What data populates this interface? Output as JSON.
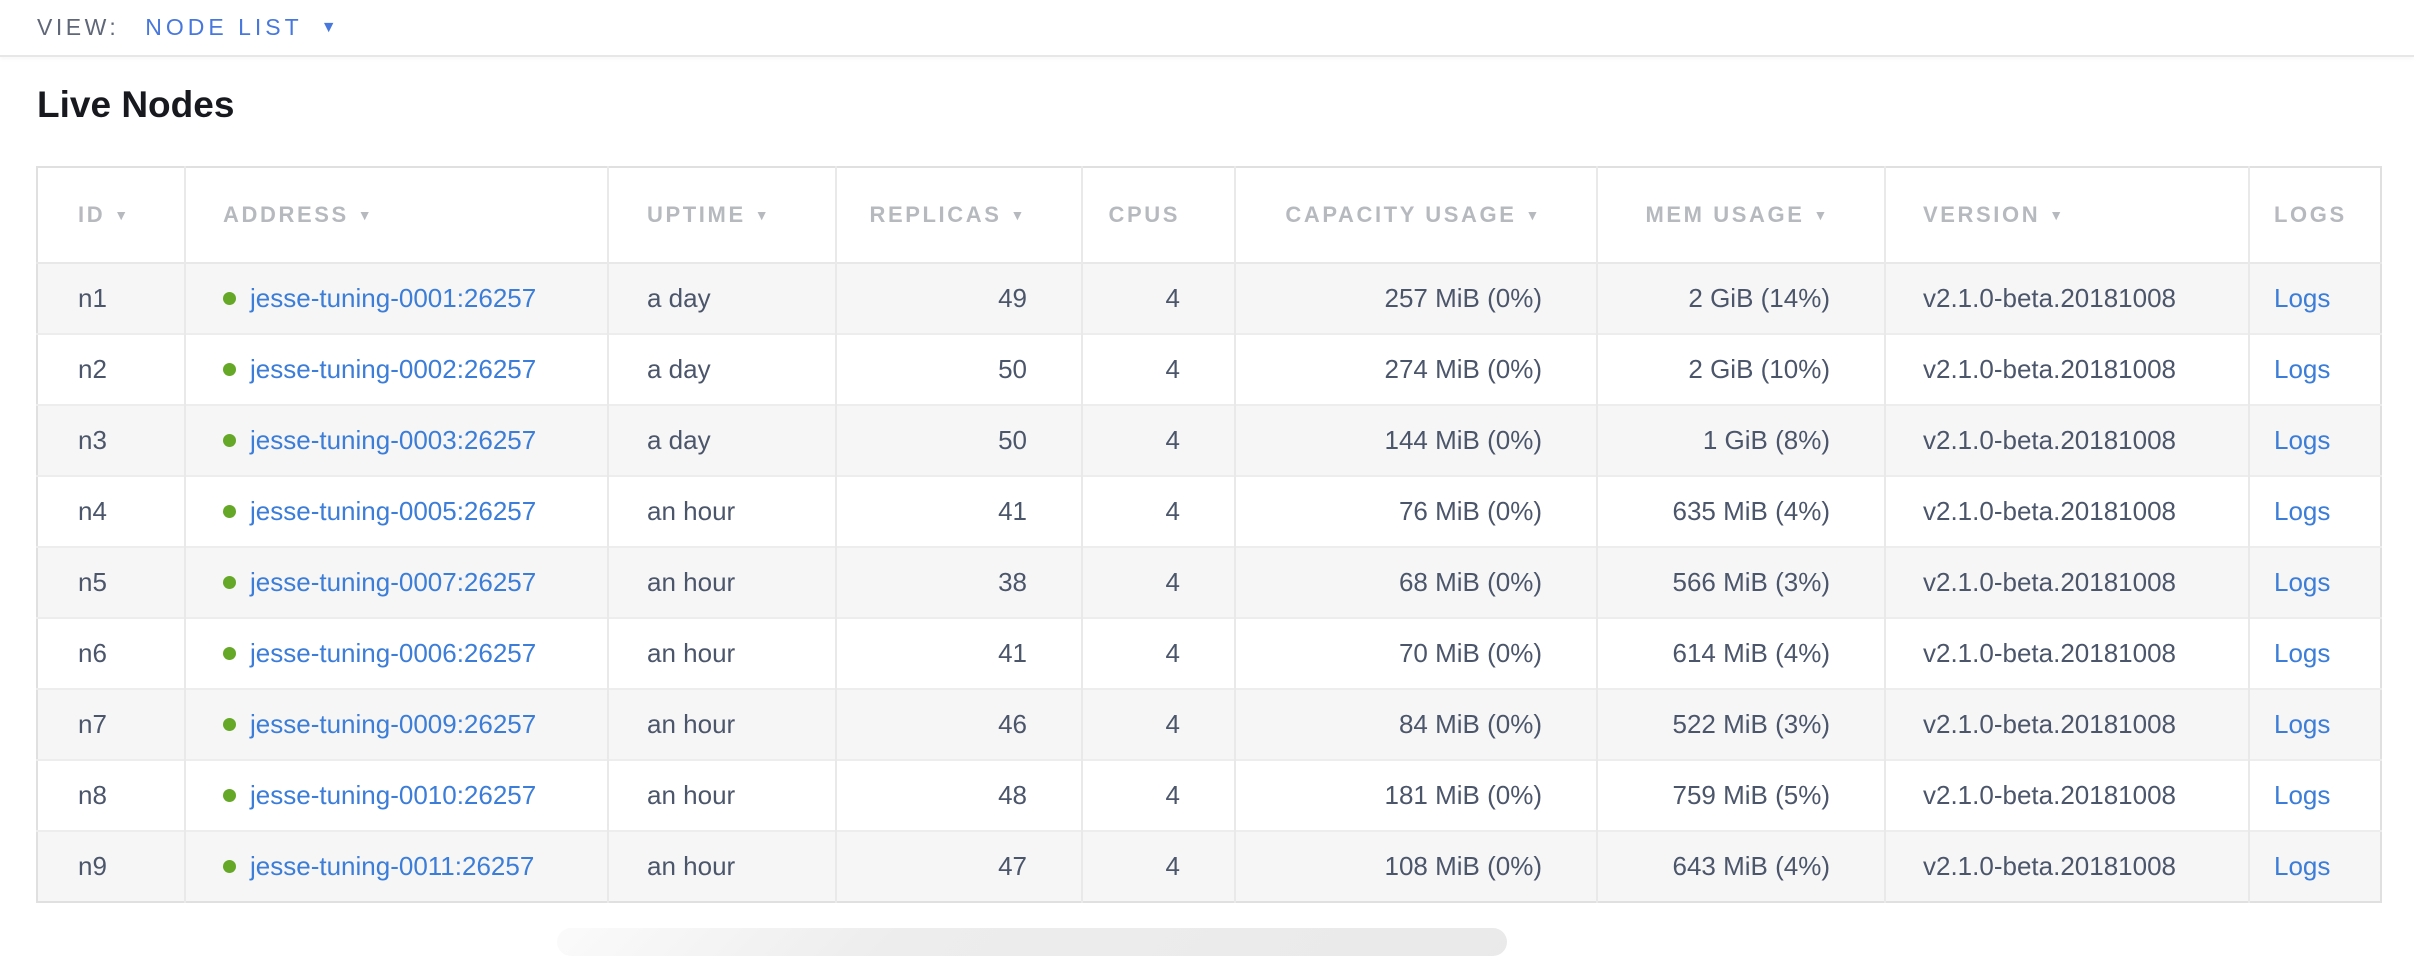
{
  "view_bar": {
    "label": "VIEW:",
    "selected": "NODE LIST"
  },
  "page": {
    "title": "Live Nodes"
  },
  "table": {
    "columns": [
      {
        "key": "id",
        "label": "ID",
        "sortable": true
      },
      {
        "key": "address",
        "label": "ADDRESS",
        "sortable": true
      },
      {
        "key": "uptime",
        "label": "UPTIME",
        "sortable": true
      },
      {
        "key": "replicas",
        "label": "REPLICAS",
        "sortable": true
      },
      {
        "key": "cpus",
        "label": "CPUS",
        "sortable": false
      },
      {
        "key": "capacity",
        "label": "CAPACITY USAGE",
        "sortable": true
      },
      {
        "key": "mem",
        "label": "MEM USAGE",
        "sortable": true
      },
      {
        "key": "version",
        "label": "VERSION",
        "sortable": true
      },
      {
        "key": "logs",
        "label": "LOGS",
        "sortable": false
      }
    ],
    "rows": [
      {
        "id": "n1",
        "status": "live",
        "address": "jesse-tuning-0001:26257",
        "uptime": "a day",
        "replicas": "49",
        "cpus": "4",
        "capacity": "257 MiB (0%)",
        "mem": "2 GiB (14%)",
        "version": "v2.1.0-beta.20181008",
        "logs": "Logs"
      },
      {
        "id": "n2",
        "status": "live",
        "address": "jesse-tuning-0002:26257",
        "uptime": "a day",
        "replicas": "50",
        "cpus": "4",
        "capacity": "274 MiB (0%)",
        "mem": "2 GiB (10%)",
        "version": "v2.1.0-beta.20181008",
        "logs": "Logs"
      },
      {
        "id": "n3",
        "status": "live",
        "address": "jesse-tuning-0003:26257",
        "uptime": "a day",
        "replicas": "50",
        "cpus": "4",
        "capacity": "144 MiB (0%)",
        "mem": "1 GiB (8%)",
        "version": "v2.1.0-beta.20181008",
        "logs": "Logs"
      },
      {
        "id": "n4",
        "status": "live",
        "address": "jesse-tuning-0005:26257",
        "uptime": "an hour",
        "replicas": "41",
        "cpus": "4",
        "capacity": "76 MiB (0%)",
        "mem": "635 MiB (4%)",
        "version": "v2.1.0-beta.20181008",
        "logs": "Logs"
      },
      {
        "id": "n5",
        "status": "live",
        "address": "jesse-tuning-0007:26257",
        "uptime": "an hour",
        "replicas": "38",
        "cpus": "4",
        "capacity": "68 MiB (0%)",
        "mem": "566 MiB (3%)",
        "version": "v2.1.0-beta.20181008",
        "logs": "Logs"
      },
      {
        "id": "n6",
        "status": "live",
        "address": "jesse-tuning-0006:26257",
        "uptime": "an hour",
        "replicas": "41",
        "cpus": "4",
        "capacity": "70 MiB (0%)",
        "mem": "614 MiB (4%)",
        "version": "v2.1.0-beta.20181008",
        "logs": "Logs"
      },
      {
        "id": "n7",
        "status": "live",
        "address": "jesse-tuning-0009:26257",
        "uptime": "an hour",
        "replicas": "46",
        "cpus": "4",
        "capacity": "84 MiB (0%)",
        "mem": "522 MiB (3%)",
        "version": "v2.1.0-beta.20181008",
        "logs": "Logs"
      },
      {
        "id": "n8",
        "status": "live",
        "address": "jesse-tuning-0010:26257",
        "uptime": "an hour",
        "replicas": "48",
        "cpus": "4",
        "capacity": "181 MiB (0%)",
        "mem": "759 MiB (5%)",
        "version": "v2.1.0-beta.20181008",
        "logs": "Logs"
      },
      {
        "id": "n9",
        "status": "live",
        "address": "jesse-tuning-0011:26257",
        "uptime": "an hour",
        "replicas": "47",
        "cpus": "4",
        "capacity": "108 MiB (0%)",
        "mem": "643 MiB (4%)",
        "version": "v2.1.0-beta.20181008",
        "logs": "Logs"
      }
    ]
  },
  "colors": {
    "link_blue": "#3b7dd8",
    "accent_blue": "#4878dd",
    "live_green": "#65a827",
    "header_gray": "#b6b9be",
    "text_slate": "#4c566b",
    "row_stripe": "#f6f6f6"
  }
}
